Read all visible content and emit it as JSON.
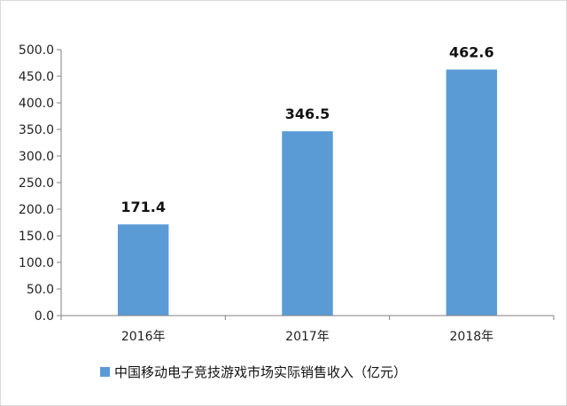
{
  "chart_data": {
    "type": "bar",
    "categories": [
      "2016年",
      "2017年",
      "2018年"
    ],
    "series": [
      {
        "name": "中国移动电子竞技游戏市场实际销售收入（亿元）",
        "values": [
          171.4,
          346.5,
          462.6
        ],
        "data_labels": [
          "171.4",
          "346.5",
          "462.6"
        ]
      }
    ],
    "y_ticks": [
      "0.0",
      "50.0",
      "100.0",
      "150.0",
      "200.0",
      "250.0",
      "300.0",
      "350.0",
      "400.0",
      "450.0",
      "500.0"
    ],
    "ylim": [
      0,
      500
    ],
    "title": "",
    "xlabel": "",
    "ylabel": "",
    "grid": false,
    "legend": "bottom",
    "bar_color": "#5b9bd5"
  }
}
